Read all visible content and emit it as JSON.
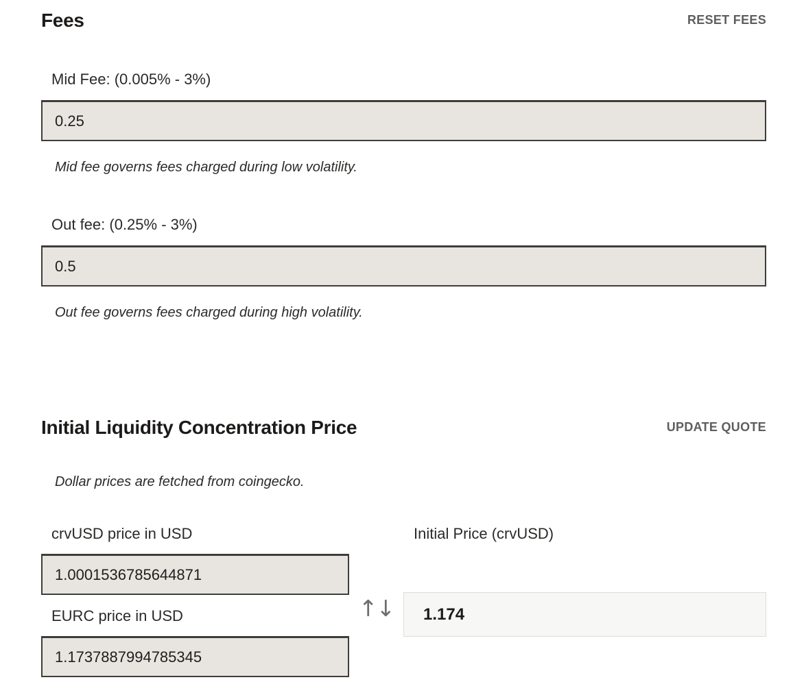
{
  "fees_section": {
    "title": "Fees",
    "reset_button_label": "RESET FEES",
    "mid_fee": {
      "label": "Mid Fee: (0.005% - 3%)",
      "value": "0.25",
      "helper": "Mid fee governs fees charged during low volatility."
    },
    "out_fee": {
      "label": "Out fee: (0.25% - 3%)",
      "value": "0.5",
      "helper": "Out fee governs fees charged during high volatility."
    }
  },
  "initial_price_section": {
    "title": "Initial Liquidity Concentration Price",
    "update_button_label": "UPDATE QUOTE",
    "helper": "Dollar prices are fetched from coingecko.",
    "crvusd_price": {
      "label": "crvUSD price in USD",
      "value": "1.0001536785644871"
    },
    "eurc_price": {
      "label": "EURC price in USD",
      "value": "1.1737887994785345"
    },
    "swap_icon_glyph": "↑↓",
    "initial_price": {
      "label": "Initial Price (crvUSD)",
      "value": "1.174"
    }
  },
  "colors": {
    "input_background": "#e8e5e1",
    "input_border": "#3f3d39",
    "result_background": "#f7f7f6",
    "muted_button_text": "#5f5e5c",
    "page_background": "#ffffff"
  }
}
